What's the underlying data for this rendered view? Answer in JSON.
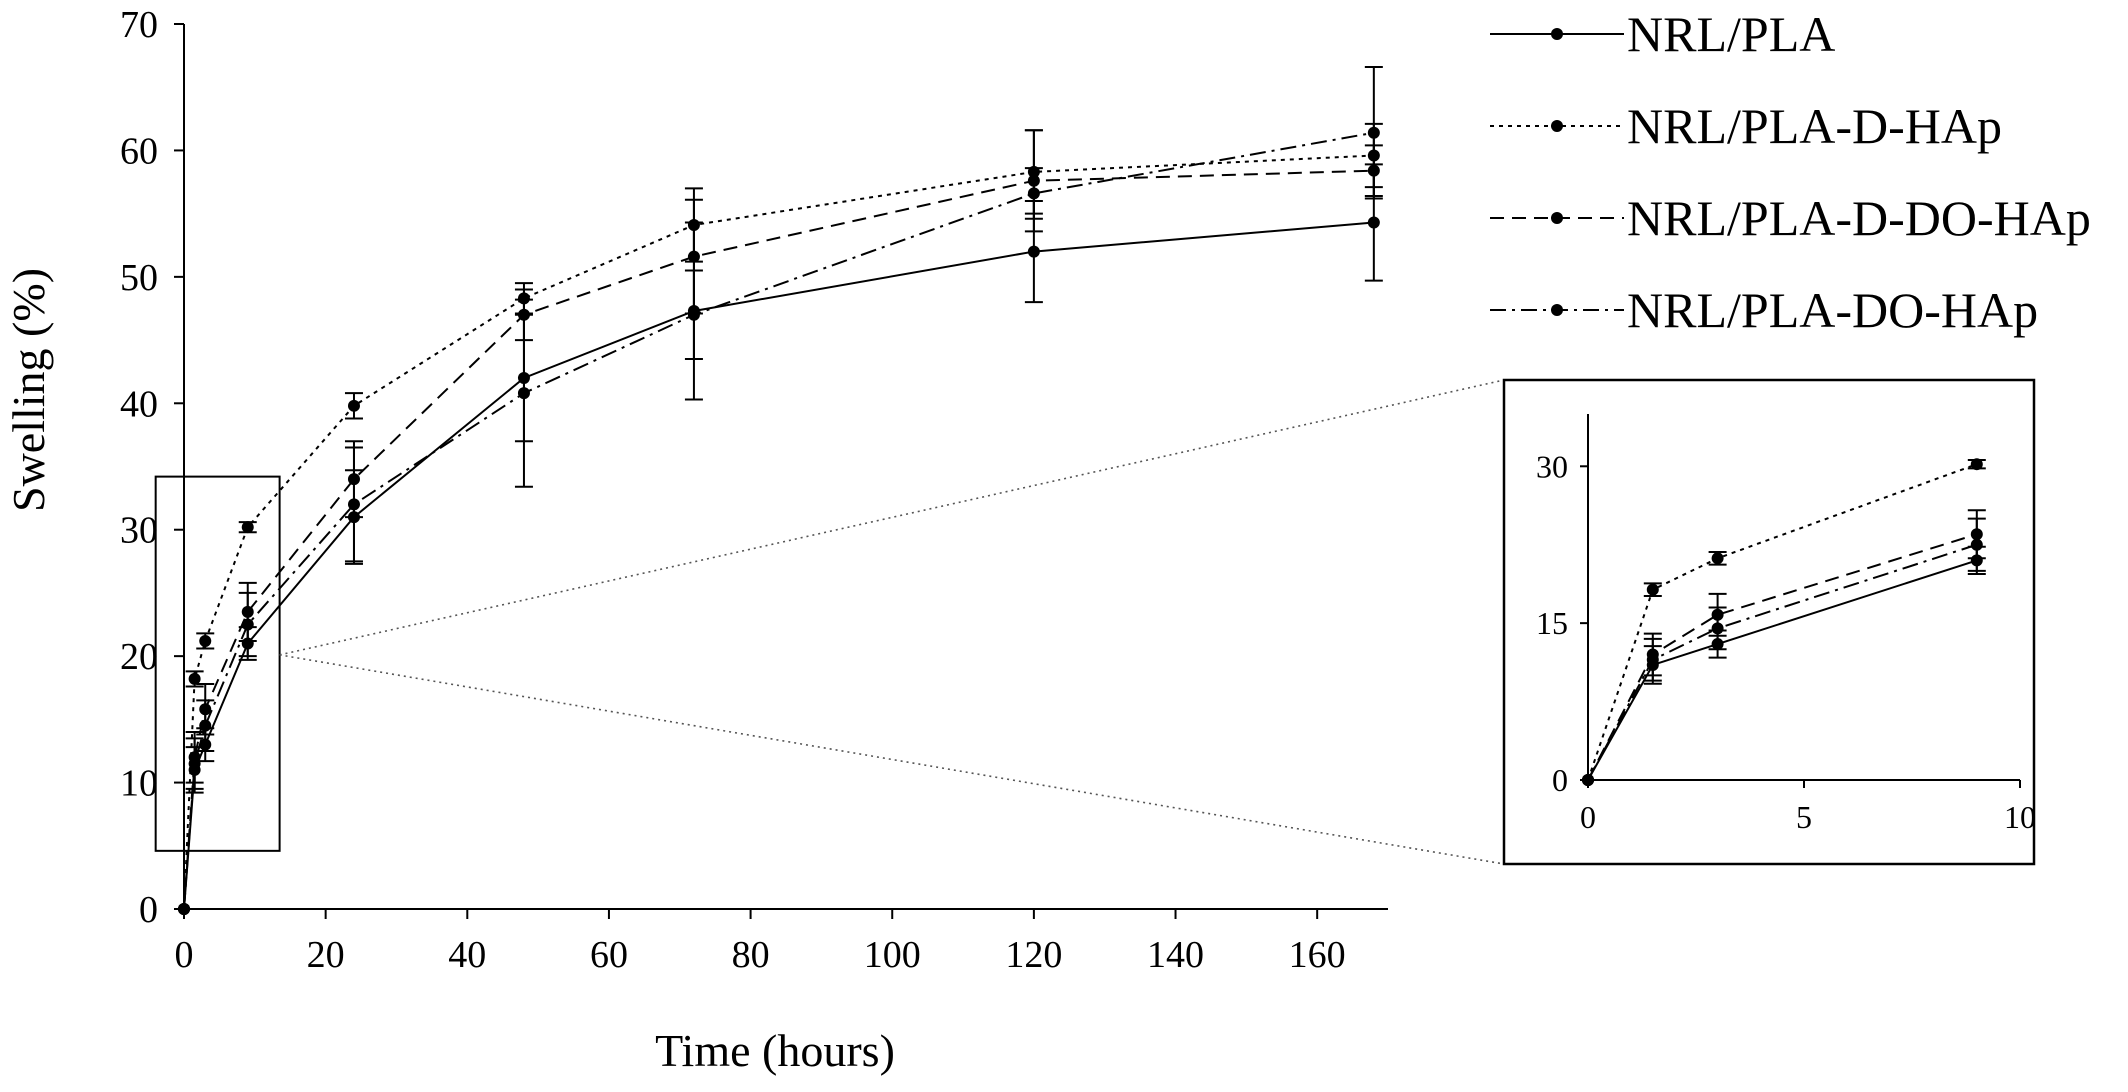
{
  "chart_data": {
    "type": "line",
    "xlabel": "Time (hours)",
    "ylabel": "Swelling (%)",
    "xlim": [
      0,
      170
    ],
    "ylim": [
      0,
      70
    ],
    "xticks": [
      0,
      20,
      40,
      60,
      80,
      100,
      120,
      140,
      160
    ],
    "yticks": [
      0,
      10,
      20,
      30,
      40,
      50,
      60,
      70
    ],
    "x": [
      0,
      1.5,
      3,
      9,
      24,
      48,
      72,
      120,
      168
    ],
    "legend_position": "top-right",
    "series": [
      {
        "name": "NRL/PLA",
        "dash": "solid",
        "values": [
          0,
          11,
          13,
          21,
          31,
          42,
          47.3,
          52,
          54.3
        ],
        "errors": [
          0,
          1.8,
          1.3,
          1.3,
          3.7,
          5,
          7,
          4,
          4.6
        ]
      },
      {
        "name": "NRL/PLA-D-HAp",
        "dash": "dotted",
        "values": [
          0,
          18.2,
          21.2,
          30.2,
          39.8,
          48.3,
          54.1,
          58.3,
          59.6
        ],
        "errors": [
          0,
          0.6,
          0.6,
          0.4,
          1,
          1.2,
          2.9,
          3.3,
          2.5
        ]
      },
      {
        "name": "NRL/PLA-D-DO-HAp",
        "dash": "dashed",
        "values": [
          0,
          12,
          15.8,
          23.5,
          34,
          47,
          51.6,
          57.6,
          58.4
        ],
        "errors": [
          0,
          2,
          2,
          2.3,
          3,
          2,
          4.5,
          4,
          2
        ]
      },
      {
        "name": "NRL/PLA-DO-HAp",
        "dash": "dashdot",
        "values": [
          0,
          11.5,
          14.5,
          22.5,
          32,
          40.8,
          47,
          56.6,
          61.4
        ],
        "errors": [
          0,
          2,
          2,
          2.5,
          4.5,
          7.4,
          3.5,
          2,
          5.2
        ]
      }
    ],
    "inset": {
      "xlim": [
        0,
        10
      ],
      "ylim": [
        0,
        35
      ],
      "xticks": [
        0,
        5,
        10
      ],
      "yticks": [
        0,
        15,
        30
      ],
      "xlabel": "",
      "ylabel": ""
    }
  }
}
